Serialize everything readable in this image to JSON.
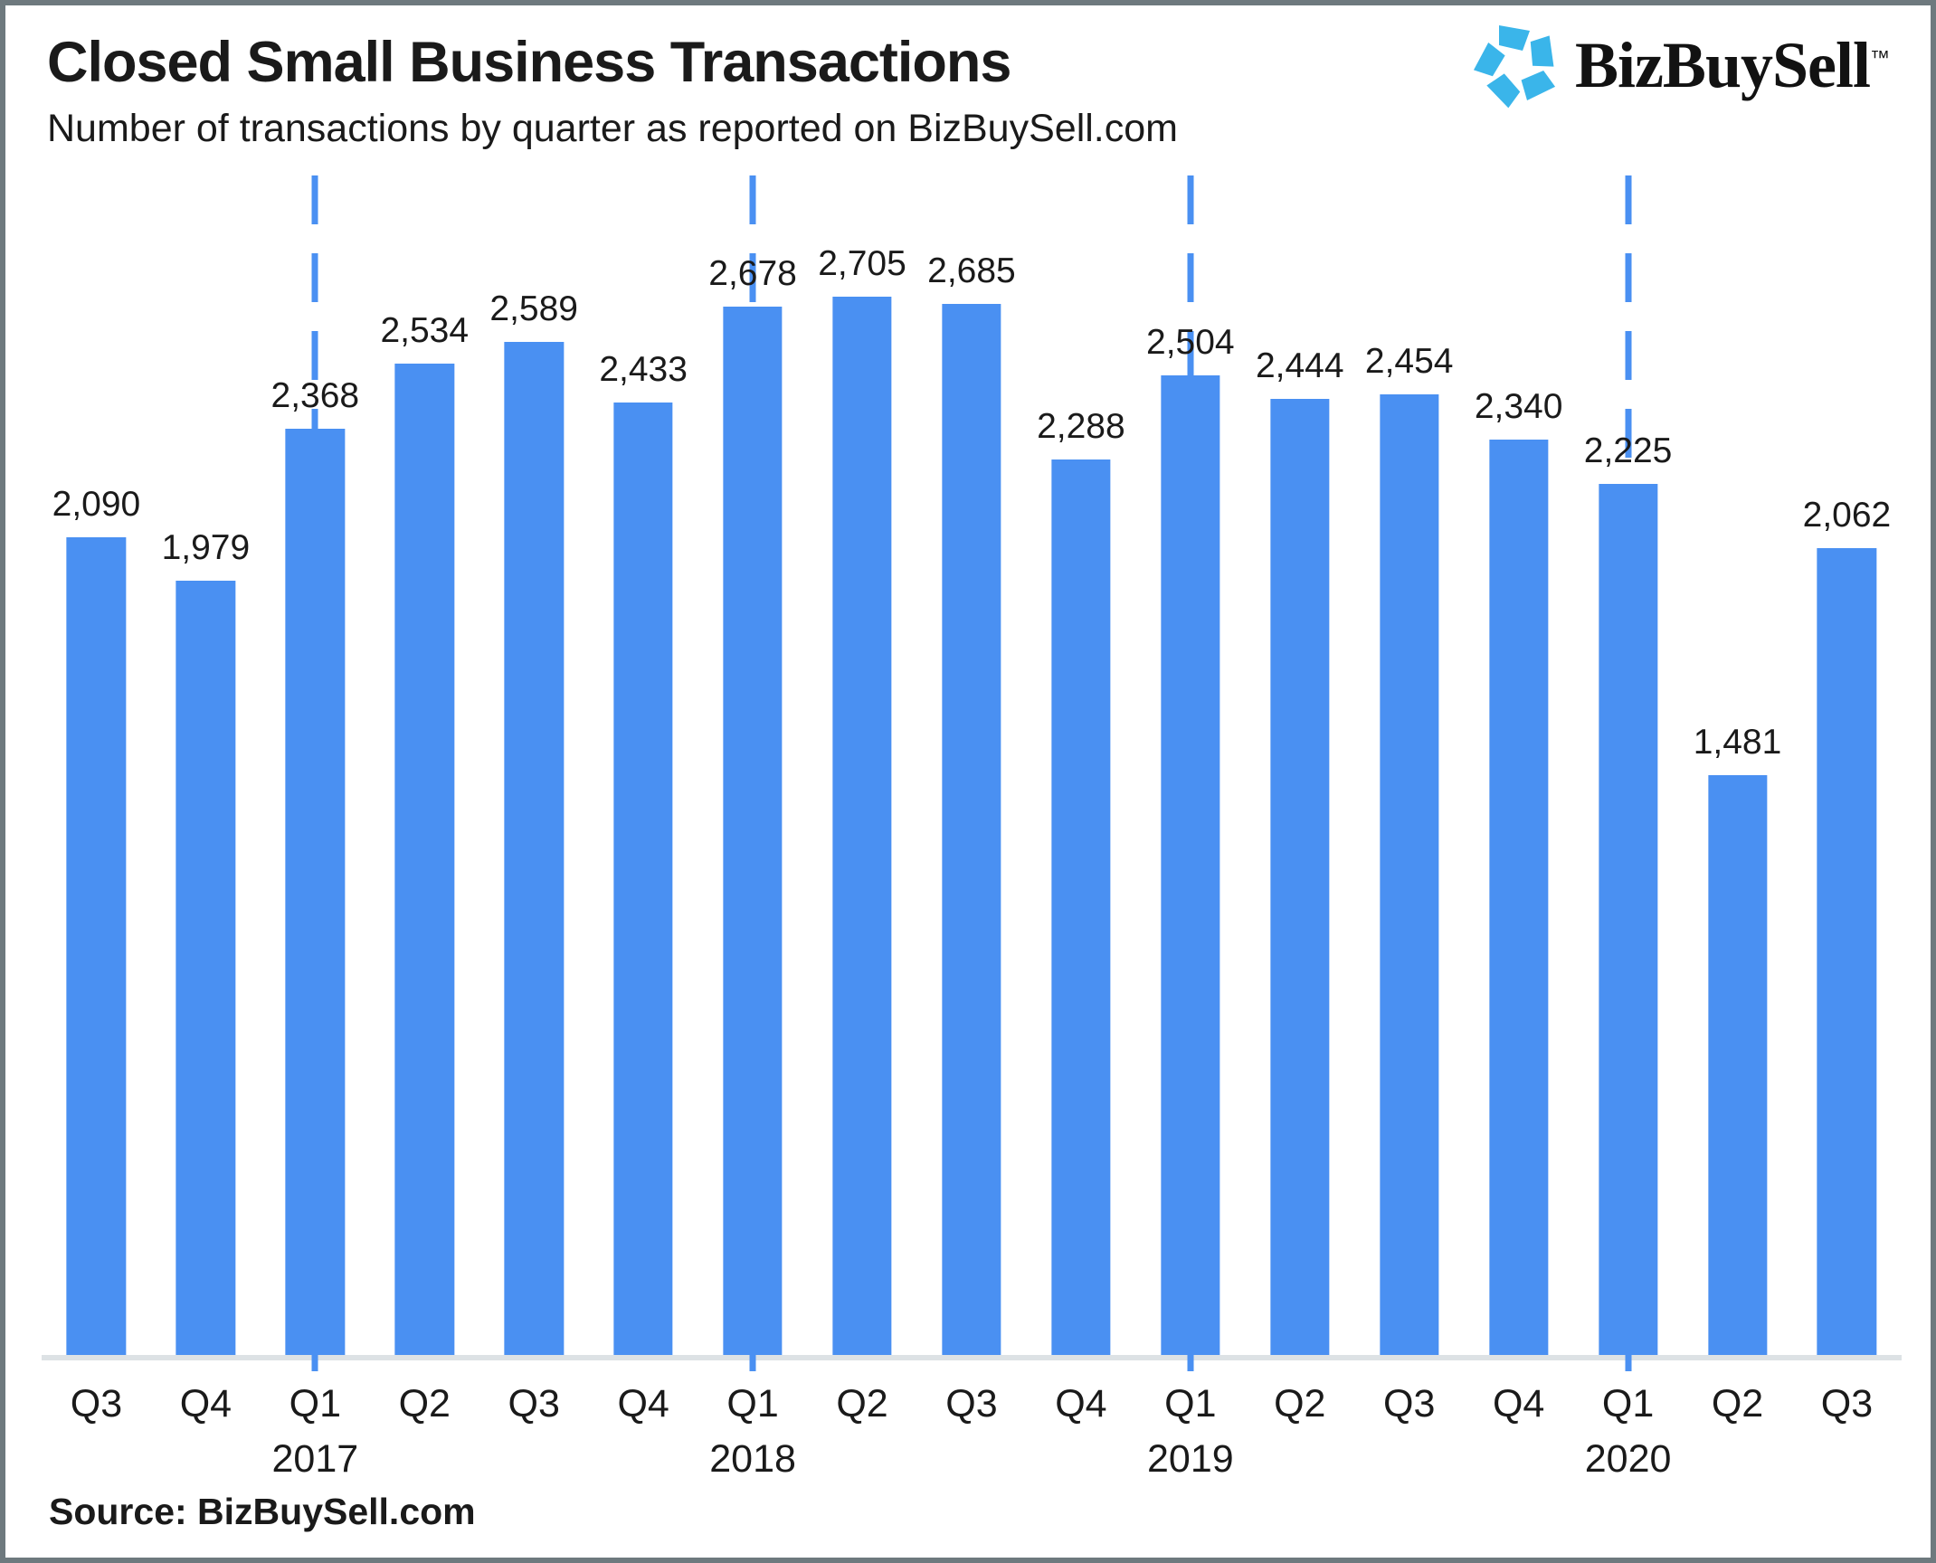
{
  "header": {
    "title": "Closed Small Business Transactions",
    "subtitle": "Number of transactions by quarter as reported on BizBuySell.com"
  },
  "logo": {
    "icon": "bizbuysell-pinwheel-star-icon",
    "text": "BizBuySell",
    "tm": "™"
  },
  "source": {
    "label": "Source: BizBuySell.com"
  },
  "colors": {
    "bar": "#4a90f2",
    "dash_guide": "#4a90f2",
    "axis": "#dde2e5",
    "logo_icon": "#3ab5ea",
    "text": "#1a1a1a"
  },
  "chart_data": {
    "type": "bar",
    "title": "Closed Small Business Transactions",
    "subtitle": "Number of transactions by quarter as reported on BizBuySell.com",
    "categories": [
      "Q3",
      "Q4",
      "Q1",
      "Q2",
      "Q3",
      "Q4",
      "Q1",
      "Q2",
      "Q3",
      "Q4",
      "Q1",
      "Q2",
      "Q3",
      "Q4",
      "Q1",
      "Q2",
      "Q3"
    ],
    "year_labels": [
      "",
      "",
      "2017",
      "",
      "",
      "",
      "2018",
      "",
      "",
      "",
      "2019",
      "",
      "",
      "",
      "2020",
      "",
      ""
    ],
    "values": [
      2090,
      1979,
      2368,
      2534,
      2589,
      2433,
      2678,
      2705,
      2685,
      2288,
      2504,
      2444,
      2454,
      2340,
      2225,
      1481,
      2062
    ],
    "value_labels": [
      "2,090",
      "1,979",
      "2,368",
      "2,534",
      "2,589",
      "2,433",
      "2,678",
      "2,705",
      "2,685",
      "2,288",
      "2,504",
      "2,444",
      "2,454",
      "2,340",
      "2,225",
      "1,481",
      "2,062"
    ],
    "xlabel": "",
    "ylabel": "",
    "ylim": [
      0,
      3014
    ],
    "grid": false,
    "legend": false,
    "bar_orientation": "vertical",
    "dashed_year_guides_at_indices": [
      2,
      6,
      10,
      14
    ],
    "value_labels_position": "above-bars"
  }
}
